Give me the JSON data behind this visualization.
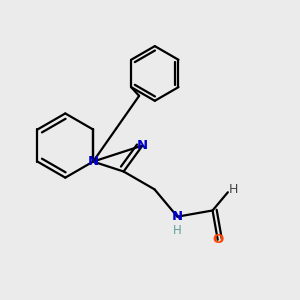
{
  "bg_color": "#ebebeb",
  "bond_color": "#000000",
  "N_color": "#0000cd",
  "O_color": "#ff4500",
  "H_color": "#5f9ea0",
  "bond_width": 1.6,
  "figsize": [
    3.0,
    3.0
  ],
  "dpi": 100,
  "xlim": [
    0,
    10
  ],
  "ylim": [
    0,
    10
  ]
}
